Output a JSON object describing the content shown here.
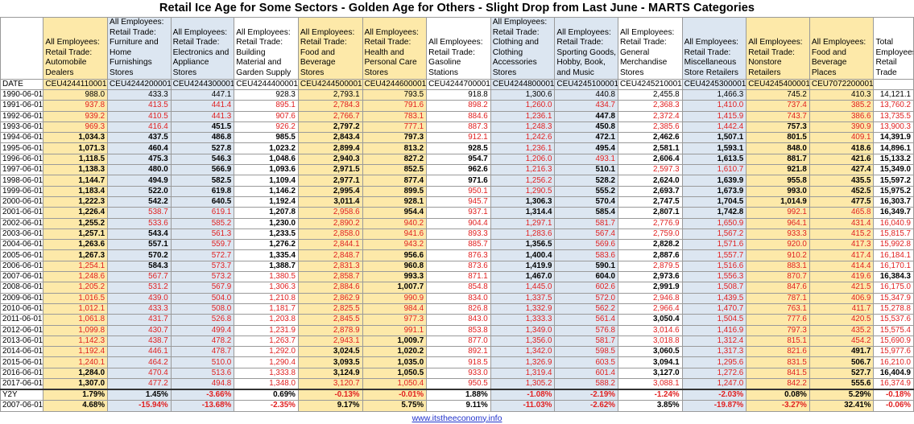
{
  "title": "Retail Ice Age for Some Sectors - Golden Age for Others - Slight Drop from Last June - MARTS Categories",
  "date_header": "DATE",
  "columns": [
    {
      "header": "All Employees: Retail Trade: Automobile Dealers",
      "code": "CEU4244110001",
      "color": "y"
    },
    {
      "header": "All Employees: Retail Trade: Furniture and Home Furnishings Stores",
      "code": "CEU4244200001",
      "color": "b"
    },
    {
      "header": "All Employees: Retail Trade: Electronics and Appliance Stores",
      "code": "CEU4244300001",
      "color": "b"
    },
    {
      "header": "All Employees: Retail Trade: Building Material and Garden Supply",
      "code": "CEU4244400001",
      "color": "w"
    },
    {
      "header": "All Employees: Retail Trade: Food and Beverage Stores",
      "code": "CEU4244500001",
      "color": "y"
    },
    {
      "header": "All Employees: Retail Trade: Health and Personal Care Stores",
      "code": "CEU4244600001",
      "color": "y"
    },
    {
      "header": "All Employees: Retail Trade: Gasoline Stations",
      "code": "CEU4244700001",
      "color": "w"
    },
    {
      "header": "All Employees: Retail Trade: Clothing and Clothing Accessories Stores",
      "code": "CEU4244800001",
      "color": "b"
    },
    {
      "header": "All Employees: Retail Trade: Sporting Goods, Hobby, Book, and Music",
      "code": "CEU4245100001",
      "color": "b"
    },
    {
      "header": "All Employees: Retail Trade: General Merchandise Stores",
      "code": "CEU4245210001",
      "color": "w"
    },
    {
      "header": "All Employees: Retail Trade: Miscellaneous Store Retailers",
      "code": "CEU4245300001",
      "color": "b"
    },
    {
      "header": "All Employees: Retail Trade: Nonstore Retailers",
      "code": "CEU4245400001",
      "color": "y"
    },
    {
      "header": "All Employees: Food and Beverage Places",
      "code": "CEU7072200001",
      "color": "y"
    },
    {
      "header": "Total Employees Retail Trade",
      "code": "",
      "color": "w"
    }
  ],
  "rows": [
    {
      "date": "1990-06-01",
      "v": [
        "988.0",
        "433.3",
        "447.1",
        "928.3",
        "2,793.1",
        "793.5",
        "918.8",
        "1,300.6",
        "440.8",
        "2,455.8",
        "1,466.3",
        "745.2",
        "410.3",
        "14,121.1"
      ]
    },
    {
      "date": "1991-06-01",
      "v": [
        "937.8",
        "413.5",
        "441.4",
        "895.1",
        "2,784.3",
        "791.6",
        "898.2",
        "1,260.0",
        "434.7",
        "2,368.3",
        "1,410.0",
        "737.4",
        "385.2",
        "13,760.2"
      ]
    },
    {
      "date": "1992-06-01",
      "v": [
        "939.2",
        "410.5",
        "441.3",
        "907.6",
        "2,766.7",
        "783.1",
        "884.6",
        "1,236.1",
        "447.8",
        "2,372.4",
        "1,415.9",
        "743.7",
        "386.6",
        "13,735.5"
      ]
    },
    {
      "date": "1993-06-01",
      "v": [
        "969.3",
        "416.4",
        "451.5",
        "926.2",
        "2,797.2",
        "777.1",
        "887.3",
        "1,248.3",
        "450.8",
        "2,385.6",
        "1,442.4",
        "757.3",
        "390.9",
        "13,900.3"
      ]
    },
    {
      "date": "1994-06-01",
      "v": [
        "1,034.3",
        "437.5",
        "486.8",
        "985.5",
        "2,843.4",
        "797.3",
        "912.1",
        "1,242.6",
        "472.1",
        "2,462.6",
        "1,507.1",
        "801.5",
        "409.1",
        "14,391.9"
      ]
    },
    {
      "date": "1995-06-01",
      "v": [
        "1,071.3",
        "460.4",
        "527.8",
        "1,023.2",
        "2,899.4",
        "813.2",
        "928.5",
        "1,236.1",
        "495.4",
        "2,581.1",
        "1,593.1",
        "848.0",
        "418.6",
        "14,896.1"
      ]
    },
    {
      "date": "1996-06-01",
      "v": [
        "1,118.5",
        "475.3",
        "546.3",
        "1,048.6",
        "2,940.3",
        "827.2",
        "954.7",
        "1,206.0",
        "493.1",
        "2,606.4",
        "1,613.5",
        "881.7",
        "421.6",
        "15,133.2"
      ]
    },
    {
      "date": "1997-06-01",
      "v": [
        "1,138.3",
        "480.0",
        "566.9",
        "1,093.6",
        "2,971.5",
        "852.5",
        "962.6",
        "1,216.3",
        "510.1",
        "2,597.3",
        "1,610.7",
        "921.8",
        "427.4",
        "15,349.0"
      ]
    },
    {
      "date": "1998-06-01",
      "v": [
        "1,144.7",
        "494.9",
        "582.5",
        "1,109.4",
        "2,977.1",
        "877.4",
        "971.6",
        "1,256.2",
        "528.2",
        "2,624.0",
        "1,639.9",
        "955.8",
        "435.5",
        "15,597.2"
      ]
    },
    {
      "date": "1999-06-01",
      "v": [
        "1,183.4",
        "522.0",
        "619.8",
        "1,146.2",
        "2,995.4",
        "899.5",
        "950.1",
        "1,290.5",
        "555.2",
        "2,693.7",
        "1,673.9",
        "993.0",
        "452.5",
        "15,975.2"
      ]
    },
    {
      "date": "2000-06-01",
      "v": [
        "1,222.3",
        "542.2",
        "640.5",
        "1,192.4",
        "3,011.4",
        "928.1",
        "945.7",
        "1,306.3",
        "570.4",
        "2,747.5",
        "1,704.5",
        "1,014.9",
        "477.5",
        "16,303.7"
      ]
    },
    {
      "date": "2001-06-01",
      "v": [
        "1,226.4",
        "538.7",
        "619.1",
        "1,207.8",
        "2,958.6",
        "954.4",
        "937.1",
        "1,314.4",
        "585.4",
        "2,807.1",
        "1,742.8",
        "992.1",
        "465.8",
        "16,349.7"
      ]
    },
    {
      "date": "2002-06-01",
      "v": [
        "1,255.2",
        "533.6",
        "585.2",
        "1,230.0",
        "2,890.2",
        "940.2",
        "904.4",
        "1,297.1",
        "581.7",
        "2,776.9",
        "1,650.9",
        "964.1",
        "431.4",
        "16,040.9"
      ]
    },
    {
      "date": "2003-06-01",
      "v": [
        "1,257.1",
        "543.4",
        "561.3",
        "1,233.5",
        "2,858.0",
        "941.6",
        "893.3",
        "1,283.6",
        "567.4",
        "2,759.0",
        "1,567.2",
        "933.3",
        "415.2",
        "15,815.7"
      ]
    },
    {
      "date": "2004-06-01",
      "v": [
        "1,263.6",
        "557.1",
        "559.7",
        "1,276.2",
        "2,844.1",
        "943.2",
        "885.7",
        "1,356.5",
        "569.6",
        "2,828.2",
        "1,571.6",
        "920.0",
        "417.3",
        "15,992.8"
      ]
    },
    {
      "date": "2005-06-01",
      "v": [
        "1,267.3",
        "570.2",
        "572.7",
        "1,335.4",
        "2,848.7",
        "956.6",
        "876.3",
        "1,400.4",
        "583.6",
        "2,887.6",
        "1,557.7",
        "910.2",
        "417.4",
        "16,184.1"
      ]
    },
    {
      "date": "2006-06-01",
      "v": [
        "1,254.1",
        "584.3",
        "573.7",
        "1,388.7",
        "2,831.3",
        "960.8",
        "873.6",
        "1,419.9",
        "590.1",
        "2,879.5",
        "1,516.6",
        "883.1",
        "414.4",
        "16,170.1"
      ]
    },
    {
      "date": "2007-06-01",
      "v": [
        "1,248.6",
        "567.7",
        "573.2",
        "1,380.5",
        "2,858.7",
        "993.3",
        "871.1",
        "1,467.0",
        "604.0",
        "2,973.6",
        "1,556.3",
        "870.7",
        "419.6",
        "16,384.3"
      ]
    },
    {
      "date": "2008-06-01",
      "v": [
        "1,205.2",
        "531.2",
        "567.9",
        "1,306.3",
        "2,884.6",
        "1,007.7",
        "854.8",
        "1,445.0",
        "602.6",
        "2,991.9",
        "1,508.7",
        "847.6",
        "421.5",
        "16,175.0"
      ]
    },
    {
      "date": "2009-06-01",
      "v": [
        "1,016.5",
        "439.0",
        "504.0",
        "1,210.8",
        "2,862.9",
        "990.9",
        "834.0",
        "1,337.5",
        "572.0",
        "2,946.8",
        "1,439.5",
        "787.1",
        "406.9",
        "15,347.9"
      ]
    },
    {
      "date": "2010-06-01",
      "v": [
        "1,012.1",
        "433.3",
        "508.0",
        "1,181.7",
        "2,825.5",
        "984.4",
        "826.8",
        "1,332.9",
        "562.2",
        "2,966.4",
        "1,470.7",
        "763.1",
        "411.7",
        "15,278.8"
      ]
    },
    {
      "date": "2011-06-01",
      "v": [
        "1,061.8",
        "431.7",
        "526.8",
        "1,203.8",
        "2,845.5",
        "977.3",
        "843.0",
        "1,333.3",
        "561.4",
        "3,050.4",
        "1,504.5",
        "777.6",
        "420.5",
        "15,537.6"
      ]
    },
    {
      "date": "2012-06-01",
      "v": [
        "1,099.8",
        "430.7",
        "499.4",
        "1,231.9",
        "2,878.9",
        "991.1",
        "853.8",
        "1,349.0",
        "576.8",
        "3,014.6",
        "1,416.9",
        "797.3",
        "435.2",
        "15,575.4"
      ]
    },
    {
      "date": "2013-06-01",
      "v": [
        "1,142.3",
        "438.7",
        "478.2",
        "1,263.7",
        "2,943.1",
        "1,009.7",
        "877.0",
        "1,356.0",
        "581.7",
        "3,018.8",
        "1,312.4",
        "815.1",
        "454.2",
        "15,690.9"
      ]
    },
    {
      "date": "2014-06-01",
      "v": [
        "1,192.4",
        "446.1",
        "478.7",
        "1,292.0",
        "3,024.5",
        "1,020.2",
        "892.1",
        "1,342.0",
        "598.5",
        "3,060.5",
        "1,317.3",
        "821.6",
        "491.7",
        "15,977.6"
      ]
    },
    {
      "date": "2015-06-01",
      "v": [
        "1,240.1",
        "464.2",
        "510.0",
        "1,290.4",
        "3,093.5",
        "1,035.0",
        "918.5",
        "1,326.9",
        "603.5",
        "3,094.1",
        "1,295.6",
        "831.5",
        "506.7",
        "16,210.0"
      ]
    },
    {
      "date": "2016-06-01",
      "v": [
        "1,284.0",
        "470.4",
        "513.6",
        "1,333.8",
        "3,124.9",
        "1,050.5",
        "933.0",
        "1,319.4",
        "601.4",
        "3,127.0",
        "1,272.6",
        "841.5",
        "527.7",
        "16,404.9"
      ]
    },
    {
      "date": "2017-06-01",
      "v": [
        "1,307.0",
        "477.2",
        "494.8",
        "1,348.0",
        "3,120.7",
        "1,050.4",
        "950.5",
        "1,305.2",
        "588.2",
        "3,088.1",
        "1,247.0",
        "842.2",
        "555.6",
        "16,374.9"
      ]
    }
  ],
  "summary": [
    {
      "label": "Y2Y",
      "v": [
        "1.79%",
        "1.45%",
        "-3.66%",
        "0.69%",
        "-0.13%",
        "-0.01%",
        "1.88%",
        "-1.08%",
        "-2.19%",
        "-1.24%",
        "-2.03%",
        "0.08%",
        "5.29%",
        "-0.18%"
      ]
    },
    {
      "label": "2007-06-01",
      "v": [
        "4.68%",
        "-15.94%",
        "-13.68%",
        "-2.35%",
        "9.17%",
        "5.75%",
        "9.11%",
        "-11.03%",
        "-2.62%",
        "3.85%",
        "-19.87%",
        "-3.27%",
        "32.41%",
        "-0.06%"
      ]
    }
  ],
  "footer": "www.itstheeconomy.info",
  "colors": {
    "yellow": "#fde9a9",
    "blue": "#dce6f1",
    "red": "#e02020",
    "link": "#2233cc"
  }
}
